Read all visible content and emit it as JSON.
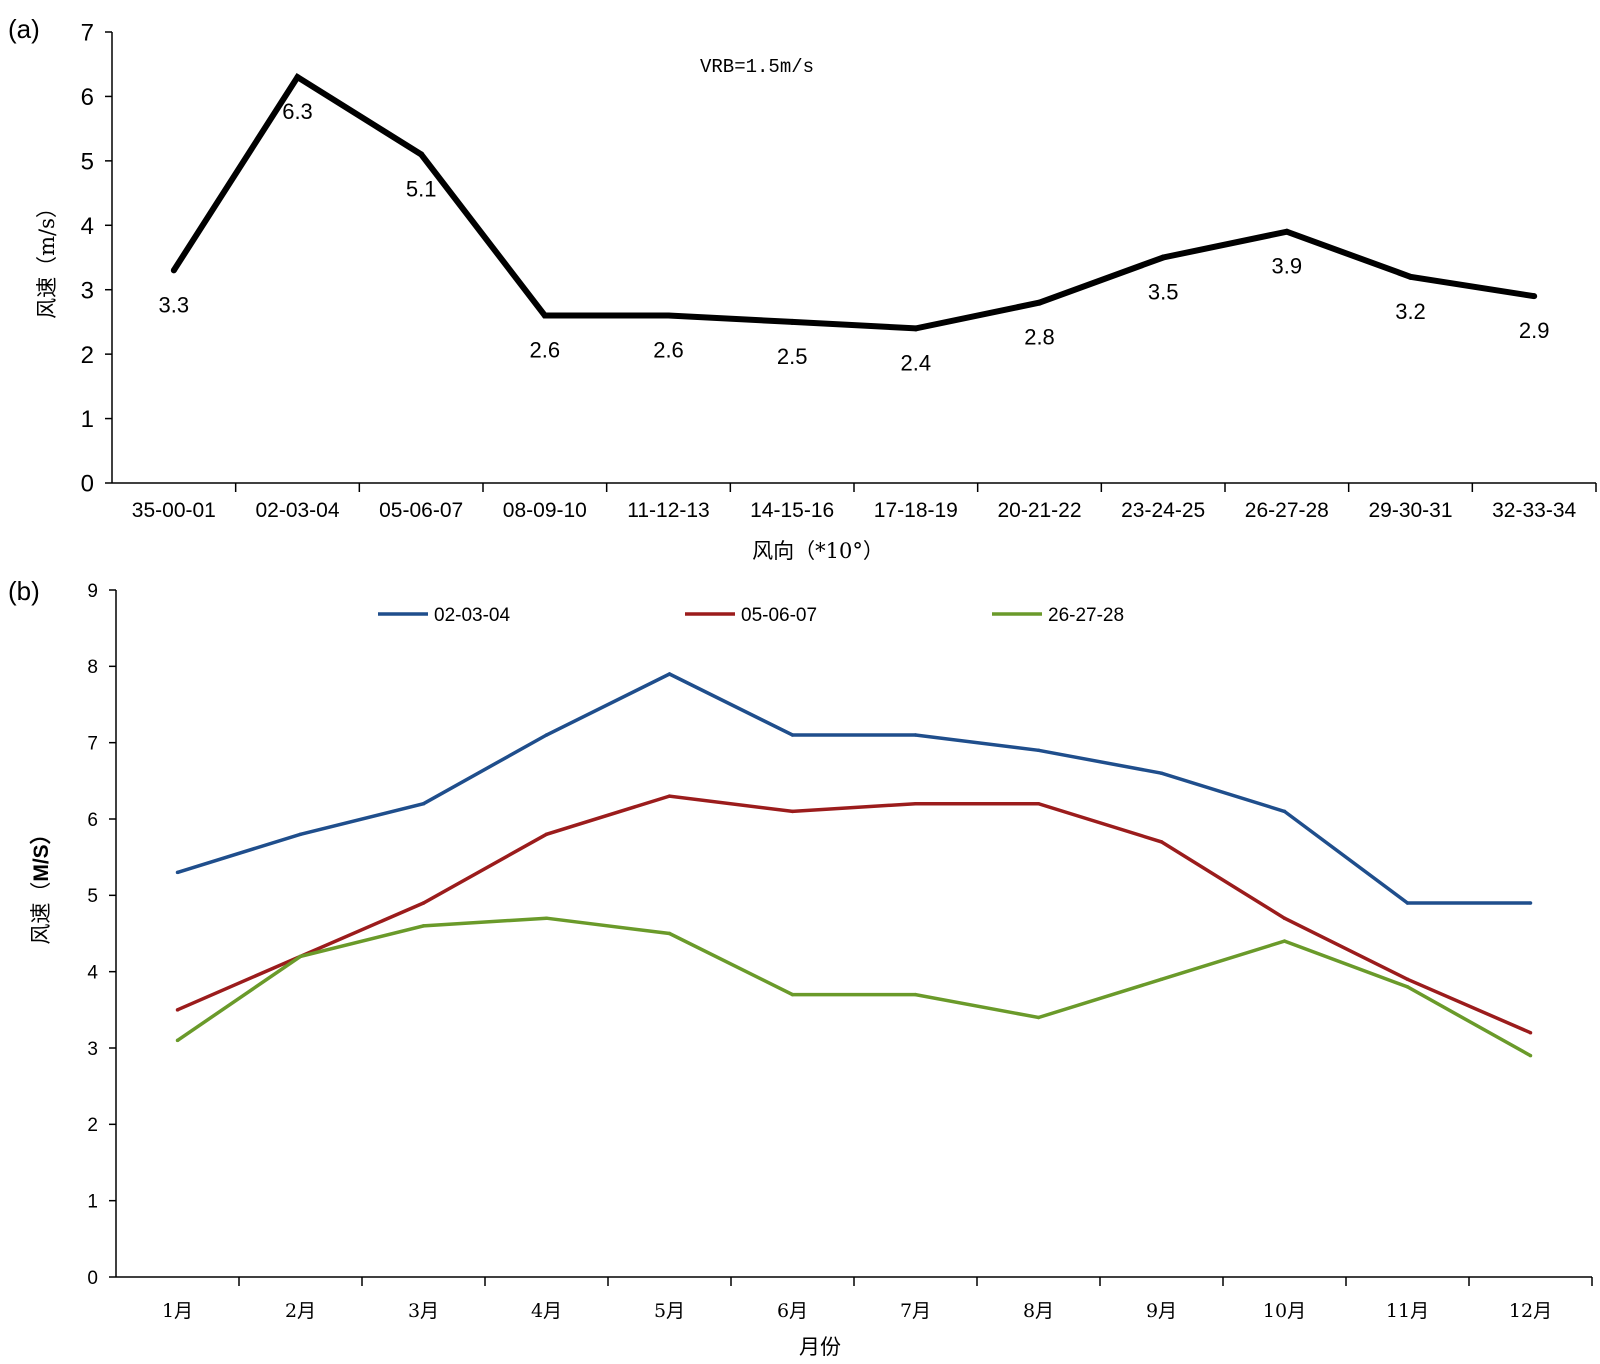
{
  "chart_data": [
    {
      "panel": "(a)",
      "type": "line",
      "title": "",
      "annotation": "VRB=1.5m/s",
      "xlabel": "风向（*10°）",
      "ylabel": "风速（m/s）",
      "ylim": [
        0,
        7
      ],
      "yticks": [
        "0",
        "1",
        "2",
        "3",
        "4",
        "5",
        "6",
        "7"
      ],
      "grid": false,
      "categories": [
        "35-00-01",
        "02-03-04",
        "05-06-07",
        "08-09-10",
        "11-12-13",
        "14-15-16",
        "17-18-19",
        "20-21-22",
        "23-24-25",
        "26-27-28",
        "29-30-31",
        "32-33-34"
      ],
      "series": [
        {
          "name": "风速",
          "color": "#000000",
          "values": [
            3.3,
            6.3,
            5.1,
            2.6,
            2.6,
            2.5,
            2.4,
            2.8,
            3.5,
            3.9,
            3.2,
            2.9
          ],
          "labels": [
            "3.3",
            "6.3",
            "5.1",
            "2.6",
            "2.6",
            "2.5",
            "2.4",
            "2.8",
            "3.5",
            "3.9",
            "3.2",
            "2.9"
          ]
        }
      ]
    },
    {
      "panel": "(b)",
      "type": "line",
      "title": "",
      "xlabel": "月份",
      "ylabel_prefix": "风速（",
      "ylabel_unit": "M/S）",
      "ylim": [
        0,
        9
      ],
      "yticks": [
        "0",
        "1",
        "2",
        "3",
        "4",
        "5",
        "6",
        "7",
        "8",
        "9"
      ],
      "grid": false,
      "legend_position": "top",
      "categories": [
        "1月",
        "2月",
        "3月",
        "4月",
        "5月",
        "6月",
        "7月",
        "8月",
        "9月",
        "10月",
        "11月",
        "12月"
      ],
      "series": [
        {
          "name": "02-03-04",
          "color": "#1f4e8c",
          "values": [
            5.3,
            5.8,
            6.2,
            7.1,
            7.9,
            7.1,
            7.1,
            6.9,
            6.6,
            6.1,
            4.9,
            4.9
          ]
        },
        {
          "name": "05-06-07",
          "color": "#9b1c1c",
          "values": [
            3.5,
            4.2,
            4.9,
            5.8,
            6.3,
            6.1,
            6.2,
            6.2,
            5.7,
            4.7,
            3.9,
            3.2
          ]
        },
        {
          "name": "26-27-28",
          "color": "#6a9a2a",
          "values": [
            3.1,
            4.2,
            4.6,
            4.7,
            4.5,
            3.7,
            3.7,
            3.4,
            3.9,
            4.4,
            3.8,
            2.9
          ]
        }
      ]
    }
  ]
}
